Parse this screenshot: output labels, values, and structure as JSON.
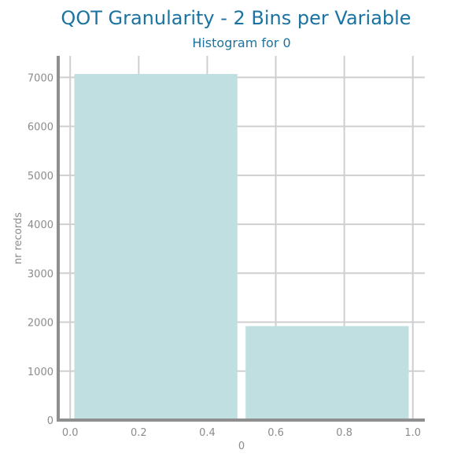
{
  "title": "QOT Granularity - 2 Bins per Variable",
  "subtitle": "Histogram for 0",
  "chart_data": {
    "type": "bar",
    "title": "QOT Granularity - 2 Bins per Variable",
    "subtitle": "Histogram for 0",
    "xlabel": "0",
    "ylabel": "nr records",
    "bins": [
      {
        "x_start": 0.0,
        "x_end": 0.5,
        "value": 7070
      },
      {
        "x_start": 0.5,
        "x_end": 1.0,
        "value": 1920
      }
    ],
    "x_ticks": [
      0.0,
      0.2,
      0.4,
      0.6,
      0.8,
      1.0
    ],
    "x_tick_labels": [
      "0.0",
      "0.2",
      "0.4",
      "0.6",
      "0.8",
      "1.0"
    ],
    "y_ticks": [
      0,
      1000,
      2000,
      3000,
      4000,
      5000,
      6000,
      7000
    ],
    "y_tick_labels": [
      "0",
      "1000",
      "2000",
      "3000",
      "4000",
      "5000",
      "6000",
      "7000"
    ],
    "xlim": [
      -0.035,
      1.035
    ],
    "ylim": [
      0,
      7440
    ],
    "grid": true,
    "colors": {
      "bar": "#bfdfe1",
      "title": "#1a73a0",
      "axis": "#8f8f8f",
      "grid": "#cfcfcf",
      "tick_text": "#8c8c8c"
    }
  }
}
